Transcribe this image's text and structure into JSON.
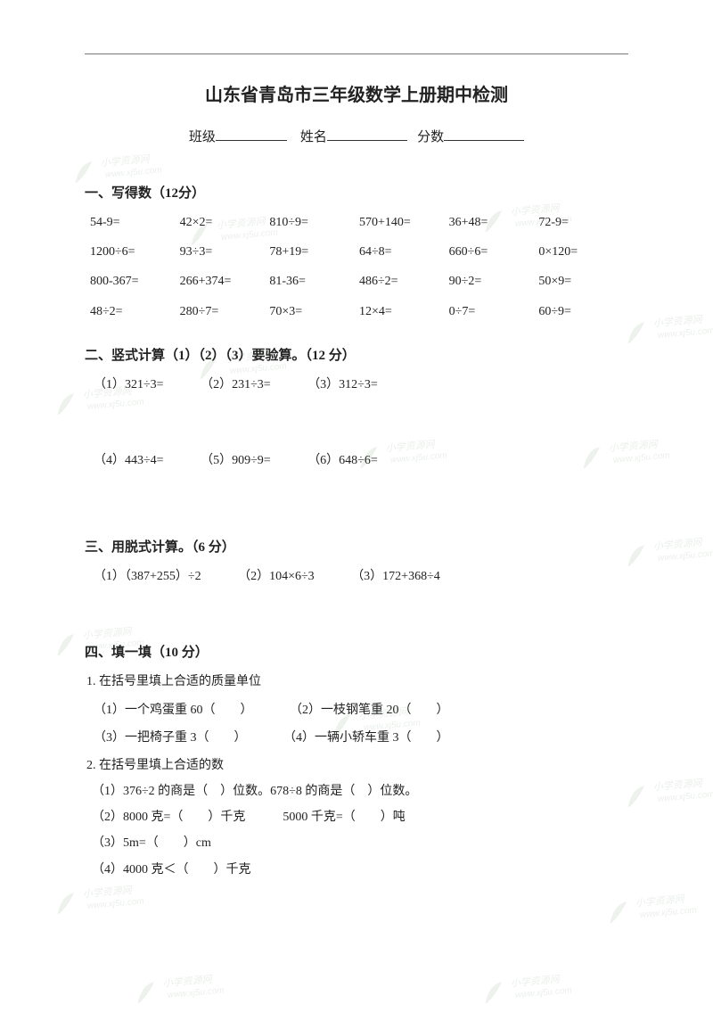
{
  "title": "山东省青岛市三年级数学上册期中检测",
  "info": {
    "class_label": "班级",
    "name_label": "姓名",
    "score_label": "分数"
  },
  "s1": {
    "heading": "一、写得数（12分）",
    "items": [
      "54-9=",
      "42×2=",
      "810÷9=",
      "570+140=",
      "36+48=",
      "72-9=",
      "1200÷6=",
      "93÷3=",
      "78+19=",
      "64÷8=",
      "660÷6=",
      "0×120=",
      "800-367=",
      "266+374=",
      "81-36=",
      "486÷2=",
      "90÷2=",
      "50×9=",
      "48÷2=",
      "280÷7=",
      "70×3=",
      "12×4=",
      "0÷7=",
      "60÷9="
    ]
  },
  "s2": {
    "heading": "二、竖式计算（1）（2）（3）要验算。（12 分）",
    "row1": [
      "（1）321÷3=",
      "（2）231÷3=",
      "（3）312÷3="
    ],
    "row2": [
      "（4）443÷4=",
      "（5）909÷9=",
      "（6）648÷6="
    ]
  },
  "s3": {
    "heading": "三、用脱式计算。（6 分）",
    "items": [
      "（1）（387+255）÷2",
      "（2）104×6÷3",
      "（3）172+368÷4"
    ]
  },
  "s4": {
    "heading": "四、填一填（10 分）",
    "q1": {
      "stem": "1. 在括号里填上合适的质量单位",
      "a": "（1）一个鸡蛋重 60（　　）",
      "b": "（2）一枝钢笔重 20（　　）",
      "c": "（3）一把椅子重 3（　　）",
      "d": "（4）一辆小轿车重 3（　　）"
    },
    "q2": {
      "stem": "2. 在括号里填上合适的数",
      "a": "（1）376÷2 的商是（　）位数。678÷8 的商是（　）位数。",
      "b": "（2）8000 克=（　　）千克　　　5000 千克=（　　）吨",
      "c": "（3）5m=（　　）cm",
      "d": "（4）4000 克＜（　　）千克"
    }
  },
  "watermark": {
    "text": "小学资源网",
    "url": "www.xj5u.com"
  }
}
